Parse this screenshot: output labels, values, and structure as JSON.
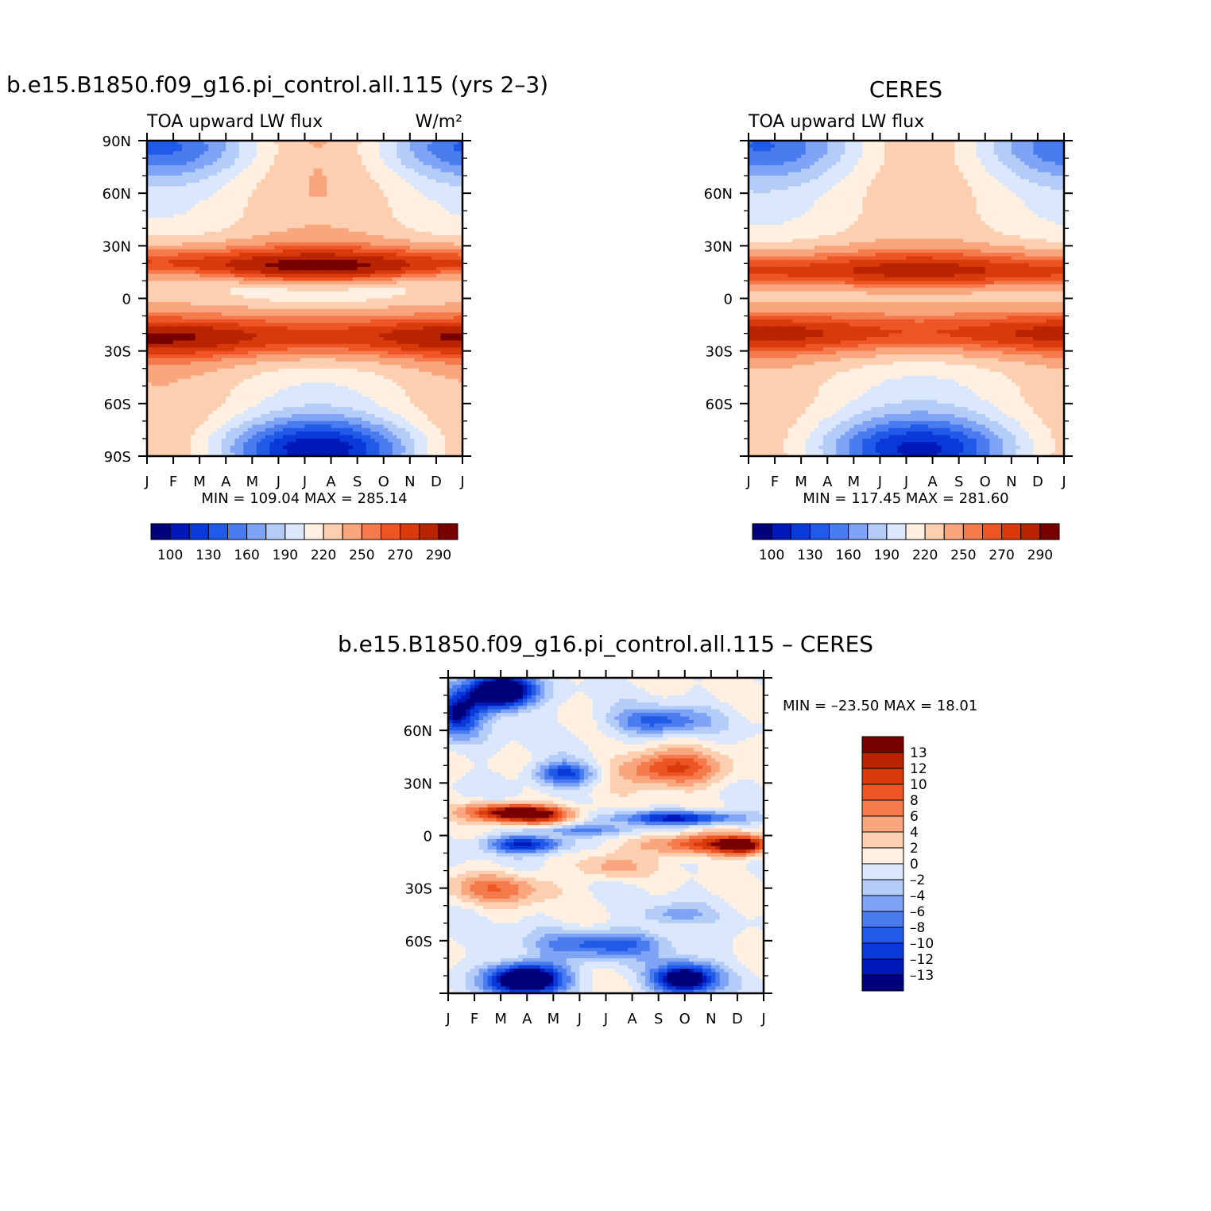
{
  "palette": [
    "#00007a",
    "#0018b8",
    "#0a39d9",
    "#2159e8",
    "#4a7cf0",
    "#7fa4f5",
    "#b4ccf8",
    "#dae7fc",
    "#fff0e1",
    "#fdcfb1",
    "#f9a67f",
    "#f57b4c",
    "#ee5524",
    "#d93a0c",
    "#b82300",
    "#7a0000"
  ],
  "chart_data": [
    {
      "type": "heatmap",
      "title": "b.e15.B1850.f09_g16.pi_control.all.115 (yrs 2–3)",
      "subtitle_left": "TOA upward LW flux",
      "subtitle_right": "W/m²",
      "x": [
        "J",
        "F",
        "M",
        "A",
        "M",
        "J",
        "J",
        "A",
        "S",
        "O",
        "N",
        "D",
        "J"
      ],
      "y_ticks": [
        "90N",
        "60N",
        "30N",
        "0",
        "30S",
        "60S",
        "90S"
      ],
      "ylim": [
        -90,
        90
      ],
      "stats": "MIN = 109.04 MAX = 285.14",
      "min": 109.04,
      "max": 285.14,
      "levels": [
        100,
        115,
        130,
        145,
        160,
        175,
        190,
        205,
        220,
        235,
        250,
        260,
        270,
        280,
        290
      ],
      "colorbar_labels": [
        "100",
        "130",
        "160",
        "190",
        "220",
        "250",
        "270",
        "290"
      ]
    },
    {
      "type": "heatmap",
      "title": "CERES",
      "subtitle_left": "TOA upward LW flux",
      "x": [
        "J",
        "F",
        "M",
        "A",
        "M",
        "J",
        "J",
        "A",
        "S",
        "O",
        "N",
        "D",
        "J"
      ],
      "y_ticks": [
        "60N",
        "30N",
        "0",
        "30S",
        "60S"
      ],
      "ylim": [
        -90,
        90
      ],
      "stats": "MIN = 117.45 MAX = 281.60",
      "min": 117.45,
      "max": 281.6,
      "levels": [
        100,
        115,
        130,
        145,
        160,
        175,
        190,
        205,
        220,
        235,
        250,
        260,
        270,
        280,
        290
      ],
      "colorbar_labels": [
        "100",
        "130",
        "160",
        "190",
        "220",
        "250",
        "270",
        "290"
      ]
    },
    {
      "type": "heatmap",
      "title": "b.e15.B1850.f09_g16.pi_control.all.115 – CERES",
      "x": [
        "J",
        "F",
        "M",
        "A",
        "M",
        "J",
        "J",
        "A",
        "S",
        "O",
        "N",
        "D",
        "J"
      ],
      "y_ticks": [
        "60N",
        "30N",
        "0",
        "30S",
        "60S"
      ],
      "ylim": [
        -90,
        90
      ],
      "stats": "MIN = –23.50 MAX =   18.01",
      "min": -23.5,
      "max": 18.01,
      "levels": [
        -13,
        -12,
        -10,
        -8,
        -6,
        -4,
        -2,
        0,
        2,
        4,
        6,
        8,
        10,
        12,
        13
      ],
      "colorbar_labels": [
        "13",
        "12",
        "10",
        "8",
        "6",
        "4",
        "2",
        "0",
        "–2",
        "–4",
        "–6",
        "–8",
        "–10",
        "–12",
        "–13"
      ]
    }
  ]
}
